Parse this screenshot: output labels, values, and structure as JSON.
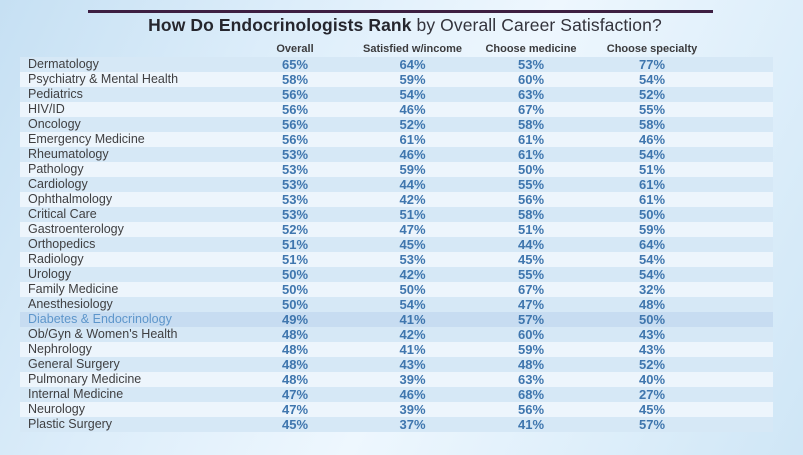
{
  "title": {
    "bold": "How Do Endocrinologists Rank",
    "regular": " by Overall Career Satisfaction?"
  },
  "accent_colors": {
    "top_rule": "#3d1f42",
    "value_text": "#3f76ae",
    "highlight_row_bg": "#c7dcf1",
    "highlight_label": "#5e96cb",
    "stripe_dark": "#d6e8f6",
    "stripe_light": "#edf5fc"
  },
  "chart_data": {
    "type": "table",
    "title": "How Do Endocrinologists Rank by Overall Career Satisfaction?",
    "columns": [
      "Overall",
      "Satisfied w/income",
      "Choose medicine",
      "Choose specialty"
    ],
    "value_suffix": "%",
    "highlight_row": "Diabetes & Endocrinology",
    "rows": [
      {
        "specialty": "Dermatology",
        "values": [
          65,
          64,
          53,
          77
        ]
      },
      {
        "specialty": "Psychiatry & Mental Health",
        "values": [
          58,
          59,
          60,
          54
        ]
      },
      {
        "specialty": "Pediatrics",
        "values": [
          56,
          54,
          63,
          52
        ]
      },
      {
        "specialty": "HIV/ID",
        "values": [
          56,
          46,
          67,
          55
        ]
      },
      {
        "specialty": "Oncology",
        "values": [
          56,
          52,
          58,
          58
        ]
      },
      {
        "specialty": "Emergency Medicine",
        "values": [
          56,
          61,
          61,
          46
        ]
      },
      {
        "specialty": "Rheumatology",
        "values": [
          53,
          46,
          61,
          54
        ]
      },
      {
        "specialty": "Pathology",
        "values": [
          53,
          59,
          50,
          51
        ]
      },
      {
        "specialty": "Cardiology",
        "values": [
          53,
          44,
          55,
          61
        ]
      },
      {
        "specialty": "Ophthalmology",
        "values": [
          53,
          42,
          56,
          61
        ]
      },
      {
        "specialty": "Critical Care",
        "values": [
          53,
          51,
          58,
          50
        ]
      },
      {
        "specialty": "Gastroenterology",
        "values": [
          52,
          47,
          51,
          59
        ]
      },
      {
        "specialty": "Orthopedics",
        "values": [
          51,
          45,
          44,
          64
        ]
      },
      {
        "specialty": "Radiology",
        "values": [
          51,
          53,
          45,
          54
        ]
      },
      {
        "specialty": "Urology",
        "values": [
          50,
          42,
          55,
          54
        ]
      },
      {
        "specialty": "Family Medicine",
        "values": [
          50,
          50,
          67,
          32
        ]
      },
      {
        "specialty": "Anesthesiology",
        "values": [
          50,
          54,
          47,
          48
        ]
      },
      {
        "specialty": "Diabetes & Endocrinology",
        "values": [
          49,
          41,
          57,
          50
        ]
      },
      {
        "specialty": "Ob/Gyn & Women's Health",
        "values": [
          48,
          42,
          60,
          43
        ]
      },
      {
        "specialty": "Nephrology",
        "values": [
          48,
          41,
          59,
          43
        ]
      },
      {
        "specialty": "General Surgery",
        "values": [
          48,
          43,
          48,
          52
        ]
      },
      {
        "specialty": "Pulmonary Medicine",
        "values": [
          48,
          39,
          63,
          40
        ]
      },
      {
        "specialty": "Internal Medicine",
        "values": [
          47,
          46,
          68,
          27
        ]
      },
      {
        "specialty": "Neurology",
        "values": [
          47,
          39,
          56,
          45
        ]
      },
      {
        "specialty": "Plastic Surgery",
        "values": [
          45,
          37,
          41,
          57
        ]
      }
    ]
  }
}
